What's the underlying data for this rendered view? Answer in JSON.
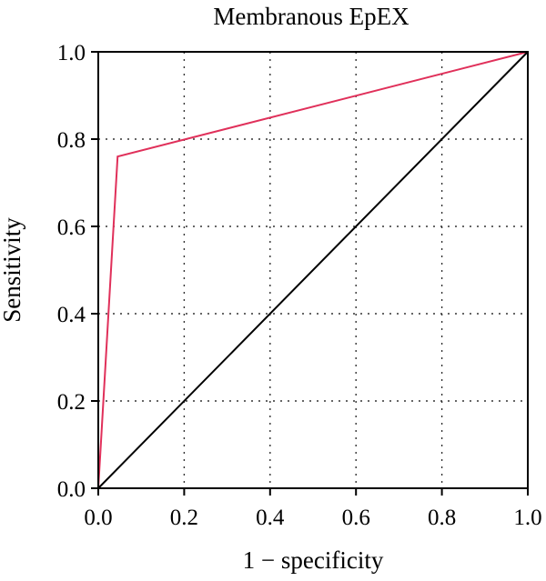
{
  "chart_data": {
    "type": "line",
    "title": "Membranous EpEX",
    "xlabel": "1 − specificity",
    "ylabel": "Sensitivity",
    "xlim": [
      0,
      1
    ],
    "ylim": [
      0,
      1
    ],
    "xticks": [
      "0.0",
      "0.2",
      "0.4",
      "0.6",
      "0.8",
      "1.0"
    ],
    "yticks": [
      "0.0",
      "0.2",
      "0.4",
      "0.6",
      "0.8",
      "1.0"
    ],
    "grid": true,
    "series": [
      {
        "color": "#e0305a",
        "x": [
          0,
          0.045,
          1
        ],
        "y": [
          0,
          0.76,
          1
        ]
      },
      {
        "color": "#000000",
        "x": [
          0,
          1
        ],
        "y": [
          0,
          1
        ]
      }
    ]
  }
}
